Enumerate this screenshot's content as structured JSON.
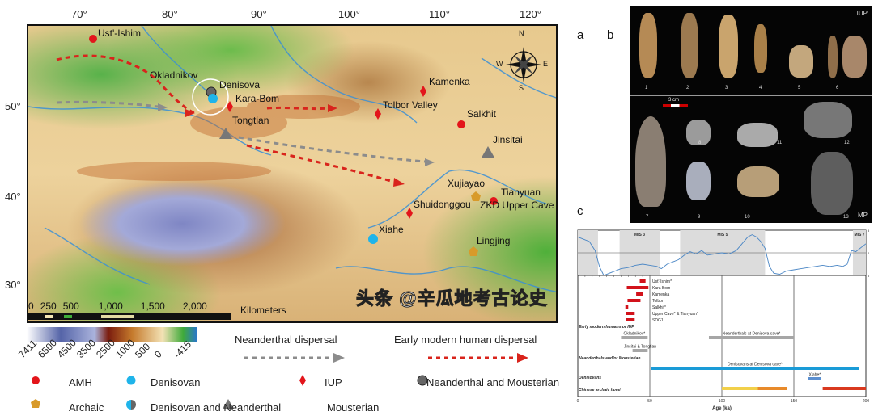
{
  "panels": {
    "a": "a",
    "b": "b",
    "c": "c"
  },
  "map": {
    "latitudes": [
      "50°",
      "40°",
      "30°"
    ],
    "longitudes": [
      "70°",
      "80°",
      "90°",
      "100°",
      "110°",
      "120°"
    ],
    "scale": {
      "ticks": [
        "0",
        "250",
        "500",
        "1,000",
        "1,500",
        "2,000"
      ],
      "unit": "Kilometers"
    },
    "compass": {
      "n": "N",
      "s": "S",
      "e": "E",
      "w": "W"
    },
    "sites": {
      "ust_ishim": "Ust'-Ishim",
      "okladnikov": "Okladnikov",
      "denisova": "Denisova",
      "kara_bom": "Kara-Bom",
      "tongtian": "Tongtian",
      "kamenka": "Kamenka",
      "tolbor": "Tolbor Valley",
      "salkhit": "Salkhit",
      "jinsitai": "Jinsitai",
      "xujiayao": "Xujiayao",
      "tianyuan": "Tianyuan",
      "zkd": "ZKD Upper Cave",
      "shuidonggou": "Shuidonggou",
      "xiahe": "Xiahe",
      "lingjing": "Lingjing"
    }
  },
  "legend": {
    "elevation_ticks": [
      "7411",
      "6500",
      "4500",
      "3500",
      "2500",
      "1000",
      "500",
      "0",
      "-415"
    ],
    "neanderthal_dispersal": "Neanderthal dispersal",
    "emh_dispersal": "Early modern human dispersal",
    "items": {
      "amh": "AMH",
      "denisovan": "Denisovan",
      "iup": "IUP",
      "neanderthal_mousterian": "Neanderthal and Mousterian",
      "archaic": "Archaic",
      "denisovan_neanderthal": "Denisovan and Neanderthal",
      "mousterian": "Mousterian"
    },
    "colors": {
      "amh": "#e3151b",
      "denisovan": "#1fb4ea",
      "iup": "#e3151b",
      "archaic": "#d89a2a",
      "mousterian": "#7d7d7d",
      "emh_arrow": "#d9241c",
      "nea_arrow": "#8c8c8c"
    }
  },
  "photos": {
    "top_label": "IUP",
    "bottom_label": "MP",
    "scale": "3 cm",
    "numbers": [
      "1",
      "2",
      "3",
      "4",
      "5",
      "6",
      "7",
      "8",
      "9",
      "10",
      "11",
      "12",
      "13"
    ]
  },
  "chart_data": {
    "type": "bar",
    "xlabel": "Age (ka)",
    "xlim": [
      0,
      200
    ],
    "xticks": [
      "0",
      "50",
      "100",
      "150",
      "200"
    ],
    "climate": {
      "yticks": [
        "3",
        "4",
        "5"
      ],
      "ylim": [
        3,
        5
      ],
      "mis": [
        {
          "label": "",
          "range": [
            0,
            14
          ]
        },
        {
          "label": "MIS 3",
          "range": [
            29,
            57
          ]
        },
        {
          "label": "MIS 5",
          "range": [
            71,
            130
          ]
        },
        {
          "label": "MIS 7",
          "range": [
            191,
            200
          ]
        }
      ],
      "x": [
        0,
        4,
        8,
        12,
        15,
        18,
        22,
        26,
        30,
        35,
        40,
        45,
        50,
        55,
        58,
        62,
        66,
        70,
        74,
        78,
        82,
        86,
        90,
        95,
        100,
        105,
        110,
        114,
        118,
        121,
        124,
        127,
        130,
        133,
        136,
        140,
        145,
        150,
        155,
        160,
        165,
        170,
        175,
        180,
        184,
        187,
        190,
        193,
        196,
        200
      ],
      "y": [
        3.3,
        3.4,
        3.5,
        3.9,
        4.6,
        5.0,
        4.9,
        4.8,
        4.7,
        4.65,
        4.55,
        4.5,
        4.55,
        4.6,
        4.7,
        4.5,
        4.4,
        4.3,
        4.1,
        3.95,
        4.05,
        3.9,
        4.1,
        4.05,
        4.0,
        4.05,
        3.9,
        3.6,
        3.3,
        3.2,
        3.3,
        3.5,
        3.8,
        4.6,
        4.9,
        4.95,
        4.8,
        4.75,
        4.7,
        4.65,
        4.6,
        4.55,
        4.6,
        4.55,
        4.6,
        4.5,
        3.9,
        3.95,
        3.8,
        3.6
      ]
    },
    "groups": [
      {
        "name": "Early modern humans or IUP",
        "bars": [
          {
            "label": "Ust'-Ishim*",
            "range": [
              43,
              47
            ],
            "color": "#d2121b"
          },
          {
            "label": "Kara Bom",
            "range": [
              34,
              49
            ],
            "color": "#d2121b"
          },
          {
            "label": "Kamenka",
            "range": [
              40.5,
              45
            ],
            "color": "#d2121b"
          },
          {
            "label": "Tolbor",
            "range": [
              34.5,
              43.5
            ],
            "color": "#d2121b"
          },
          {
            "label": "Salkhit*",
            "range": [
              33,
              35
            ],
            "color": "#d2121b"
          },
          {
            "label": "Upper Cave* & Tianyuan*",
            "range": [
              33.5,
              39.5
            ],
            "color": "#d2121b"
          },
          {
            "label": "SDG1",
            "range": [
              33.5,
              39.5
            ],
            "color": "#d2121b"
          }
        ]
      },
      {
        "name": "Neanderthals and/or Mousterian",
        "bars": [
          {
            "label": "Okladnikov*",
            "range": [
              30,
              48.5
            ],
            "color": "#a6a6a6"
          },
          {
            "label": "Neanderthals at Denisova cave*",
            "range": [
              91,
              150
            ],
            "color": "#a6a6a6"
          },
          {
            "label": "Jinsitai &  Tongtian",
            "range": [
              38,
              48.5
            ],
            "color": "#a6a6a6"
          }
        ]
      },
      {
        "name": "Denisovans",
        "bars": [
          {
            "label": "Denisovans at Denisova cave*",
            "range": [
              51,
              195
            ],
            "color": "#1a9bd7"
          },
          {
            "label": "Xiahe*",
            "range": [
              160,
              169
            ],
            "color": "#5b8fd0"
          }
        ]
      },
      {
        "name": "Chinese archaic homi",
        "bars": [
          {
            "label": "",
            "range": [
              100,
              125
            ],
            "color": "#f2d04a"
          },
          {
            "label": "",
            "range": [
              125,
              145
            ],
            "color": "#e88a2a"
          },
          {
            "label": "",
            "range": [
              170,
              200
            ],
            "color": "#d9391f"
          }
        ]
      }
    ]
  },
  "watermark": "头条 @辛瓜地考古论史"
}
